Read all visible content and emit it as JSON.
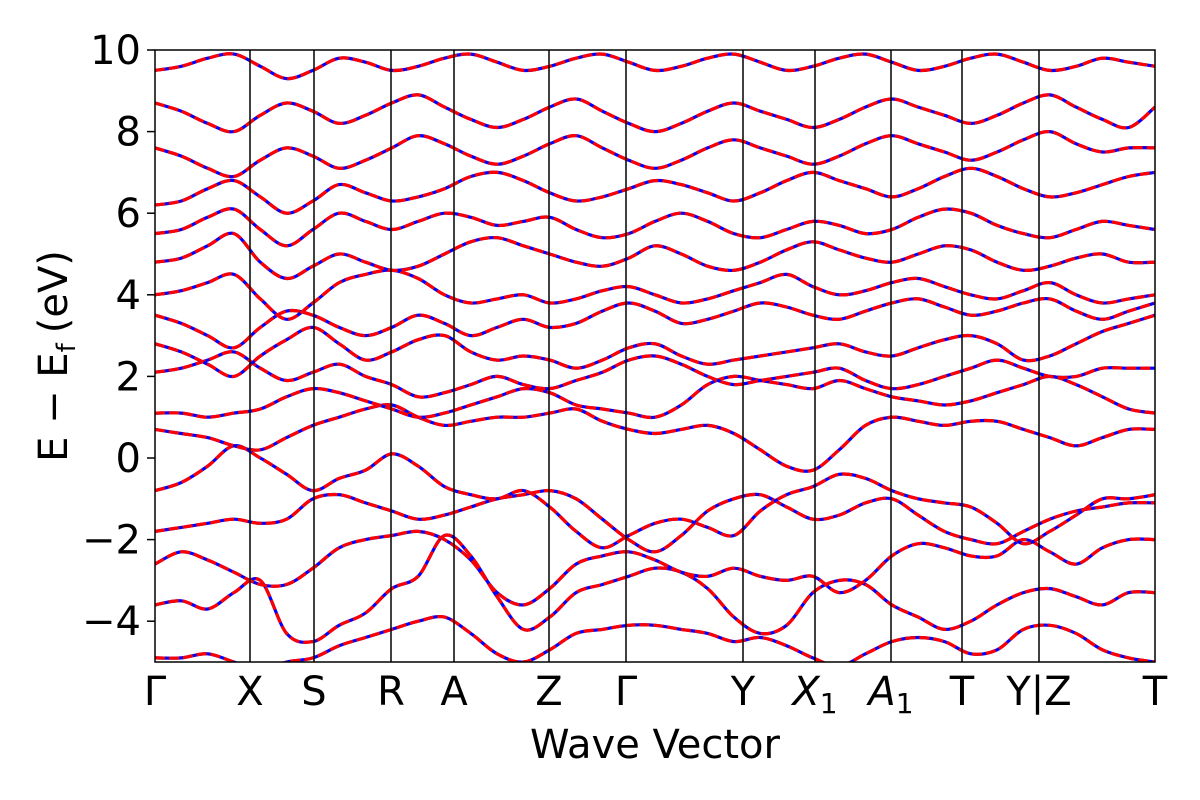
{
  "chart_data": {
    "type": "line",
    "title": "",
    "xlabel": "Wave Vector",
    "ylabel": "E − E_f (eV)",
    "ylabel_main": "E − E",
    "ylabel_sub": "f",
    "ylabel_unit": "(eV)",
    "ylim": [
      -5,
      10
    ],
    "yticks": [
      -4,
      -2,
      0,
      2,
      4,
      6,
      8,
      10
    ],
    "ytick_labels": [
      "−4",
      "−2",
      "0",
      "2",
      "4",
      "6",
      "8",
      "10"
    ],
    "grid": false,
    "legend": "none",
    "xlim": [
      0,
      1
    ],
    "high_symmetry_points": [
      {
        "label": "Γ",
        "x": 0.0
      },
      {
        "label": "X",
        "x": 0.095
      },
      {
        "label": "S",
        "x": 0.159
      },
      {
        "label": "R",
        "x": 0.236
      },
      {
        "label": "A",
        "x": 0.299
      },
      {
        "label": "Z",
        "x": 0.394
      },
      {
        "label": "Γ",
        "x": 0.471
      },
      {
        "label": "Y",
        "x": 0.588
      },
      {
        "label": "X",
        "sub": "1",
        "italic": true,
        "x": 0.66
      },
      {
        "label": "A",
        "sub": "1",
        "italic": true,
        "x": 0.736
      },
      {
        "label": "T",
        "x": 0.807
      },
      {
        "label": "Y|Z",
        "x": 0.884
      },
      {
        "label": "T",
        "x": 1.0
      }
    ],
    "series": [
      {
        "style": "solid",
        "color": "#0000ff"
      },
      {
        "style": "dashed",
        "color": "#ff0000"
      }
    ],
    "bands": [
      [
        -4.9,
        -4.9,
        -4.8,
        -5.0,
        -5.2,
        -5.0,
        -4.9,
        -4.6,
        -4.4,
        -4.2,
        -4.0,
        -3.9,
        -4.3,
        -4.8,
        -5.0,
        -4.7,
        -4.3,
        -4.2,
        -4.1,
        -4.1,
        -4.2,
        -4.3,
        -4.5,
        -4.4,
        -4.6,
        -4.9,
        -5.1,
        -4.8,
        -4.5,
        -4.4,
        -4.5,
        -4.8,
        -4.7,
        -4.2,
        -4.1,
        -4.3,
        -4.7,
        -4.9,
        -5.0
      ],
      [
        -3.6,
        -3.5,
        -3.7,
        -3.3,
        -3.0,
        -4.3,
        -4.5,
        -4.1,
        -3.8,
        -3.2,
        -2.9,
        -1.9,
        -2.4,
        -3.4,
        -4.2,
        -3.9,
        -3.3,
        -3.1,
        -2.9,
        -2.7,
        -2.8,
        -3.2,
        -3.9,
        -4.3,
        -4.1,
        -3.3,
        -3.0,
        -3.1,
        -3.6,
        -3.9,
        -4.2,
        -4.0,
        -3.6,
        -3.3,
        -3.2,
        -3.4,
        -3.6,
        -3.3,
        -3.3
      ],
      [
        -2.6,
        -2.3,
        -2.5,
        -2.8,
        -3.1,
        -3.1,
        -2.7,
        -2.2,
        -2.0,
        -1.9,
        -1.8,
        -2.0,
        -2.5,
        -3.3,
        -3.6,
        -3.2,
        -2.6,
        -2.4,
        -2.3,
        -2.5,
        -2.8,
        -2.9,
        -2.7,
        -2.9,
        -3.0,
        -2.9,
        -3.3,
        -3.0,
        -2.4,
        -2.1,
        -2.2,
        -2.4,
        -2.4,
        -2.0,
        -2.3,
        -2.6,
        -2.2,
        -2.0,
        -2.0
      ],
      [
        -1.8,
        -1.7,
        -1.6,
        -1.5,
        -1.6,
        -1.5,
        -1.0,
        -0.9,
        -1.1,
        -1.3,
        -1.5,
        -1.4,
        -1.2,
        -1.0,
        -0.9,
        -0.8,
        -1.0,
        -1.5,
        -2.0,
        -2.3,
        -1.9,
        -1.3,
        -1.0,
        -0.9,
        -1.2,
        -1.5,
        -1.4,
        -1.1,
        -1.0,
        -1.4,
        -1.8,
        -2.0,
        -2.1,
        -1.8,
        -1.5,
        -1.3,
        -1.2,
        -1.1,
        -1.1
      ],
      [
        -0.8,
        -0.6,
        -0.2,
        0.3,
        0.0,
        -0.4,
        -0.8,
        -0.5,
        -0.3,
        0.1,
        -0.2,
        -0.7,
        -0.9,
        -1.0,
        -0.8,
        -1.2,
        -1.8,
        -2.2,
        -1.9,
        -1.6,
        -1.5,
        -1.7,
        -1.9,
        -1.3,
        -0.9,
        -0.7,
        -0.4,
        -0.5,
        -0.8,
        -1.0,
        -1.1,
        -1.2,
        -1.6,
        -2.1,
        -1.8,
        -1.4,
        -1.0,
        -1.0,
        -0.9
      ],
      [
        0.7,
        0.6,
        0.5,
        0.3,
        0.2,
        0.5,
        0.8,
        1.0,
        1.2,
        1.3,
        1.0,
        0.8,
        0.9,
        1.0,
        1.0,
        1.1,
        1.2,
        0.9,
        0.7,
        0.6,
        0.7,
        0.8,
        0.6,
        0.2,
        -0.2,
        -0.3,
        0.2,
        0.8,
        1.0,
        0.9,
        0.8,
        0.9,
        0.9,
        0.7,
        0.5,
        0.3,
        0.5,
        0.7,
        0.7
      ],
      [
        1.1,
        1.1,
        1.0,
        1.1,
        1.2,
        1.5,
        1.7,
        1.6,
        1.4,
        1.2,
        1.0,
        1.1,
        1.3,
        1.5,
        1.7,
        1.6,
        1.3,
        1.2,
        1.1,
        1.0,
        1.3,
        1.8,
        2.0,
        1.9,
        1.8,
        1.7,
        1.9,
        1.7,
        1.5,
        1.4,
        1.3,
        1.4,
        1.6,
        1.8,
        2.0,
        1.8,
        1.5,
        1.2,
        1.1
      ],
      [
        2.1,
        2.2,
        2.4,
        2.6,
        2.2,
        1.9,
        2.1,
        2.3,
        2.0,
        1.8,
        1.5,
        1.6,
        1.8,
        2.0,
        1.8,
        1.7,
        1.9,
        2.1,
        2.4,
        2.5,
        2.3,
        2.0,
        1.8,
        1.9,
        2.0,
        2.1,
        2.2,
        1.9,
        1.7,
        1.8,
        2.0,
        2.2,
        2.4,
        2.2,
        2.0,
        2.0,
        2.2,
        2.2,
        2.2
      ],
      [
        2.8,
        2.6,
        2.3,
        2.0,
        2.5,
        2.9,
        3.2,
        2.8,
        2.4,
        2.6,
        2.9,
        3.0,
        2.6,
        2.4,
        2.5,
        2.4,
        2.2,
        2.4,
        2.7,
        2.8,
        2.5,
        2.3,
        2.4,
        2.5,
        2.6,
        2.7,
        2.8,
        2.6,
        2.5,
        2.7,
        2.9,
        3.0,
        2.8,
        2.4,
        2.5,
        2.8,
        3.1,
        3.3,
        3.5
      ],
      [
        3.5,
        3.3,
        3.0,
        2.7,
        3.2,
        3.6,
        3.5,
        3.2,
        3.0,
        3.2,
        3.5,
        3.3,
        3.0,
        3.2,
        3.4,
        3.2,
        3.3,
        3.6,
        3.8,
        3.6,
        3.3,
        3.4,
        3.6,
        3.8,
        3.7,
        3.5,
        3.4,
        3.6,
        3.8,
        3.9,
        3.7,
        3.5,
        3.6,
        3.8,
        3.9,
        3.6,
        3.4,
        3.6,
        3.8
      ],
      [
        4.0,
        4.1,
        4.3,
        4.5,
        3.9,
        3.4,
        3.8,
        4.3,
        4.5,
        4.6,
        4.4,
        4.0,
        3.8,
        3.9,
        4.0,
        3.8,
        3.9,
        4.1,
        4.2,
        4.0,
        3.8,
        3.9,
        4.1,
        4.3,
        4.5,
        4.2,
        4.0,
        4.1,
        4.3,
        4.4,
        4.2,
        4.0,
        3.9,
        4.1,
        4.3,
        4.0,
        3.8,
        3.9,
        4.0
      ],
      [
        4.8,
        4.9,
        5.2,
        5.5,
        4.8,
        4.4,
        4.7,
        5.0,
        4.8,
        4.6,
        4.7,
        5.0,
        5.3,
        5.4,
        5.2,
        5.0,
        4.8,
        4.7,
        4.9,
        5.2,
        5.0,
        4.7,
        4.6,
        4.8,
        5.1,
        5.3,
        5.1,
        4.9,
        4.8,
        5.0,
        5.2,
        5.1,
        4.8,
        4.6,
        4.7,
        4.9,
        5.0,
        4.8,
        4.8
      ],
      [
        5.5,
        5.6,
        5.9,
        6.1,
        5.6,
        5.2,
        5.6,
        6.0,
        5.8,
        5.6,
        5.8,
        6.0,
        5.9,
        5.7,
        5.8,
        5.9,
        5.6,
        5.4,
        5.5,
        5.8,
        6.0,
        5.8,
        5.5,
        5.4,
        5.6,
        5.8,
        5.7,
        5.5,
        5.6,
        5.9,
        6.1,
        6.0,
        5.7,
        5.5,
        5.4,
        5.6,
        5.8,
        5.7,
        5.6
      ],
      [
        6.2,
        6.3,
        6.6,
        6.8,
        6.4,
        6.0,
        6.3,
        6.7,
        6.5,
        6.3,
        6.4,
        6.6,
        6.9,
        7.0,
        6.8,
        6.5,
        6.3,
        6.4,
        6.6,
        6.8,
        6.7,
        6.5,
        6.3,
        6.5,
        6.8,
        7.0,
        6.8,
        6.6,
        6.4,
        6.6,
        6.9,
        7.1,
        6.9,
        6.6,
        6.4,
        6.5,
        6.7,
        6.9,
        7.0
      ],
      [
        7.6,
        7.4,
        7.1,
        6.9,
        7.3,
        7.6,
        7.4,
        7.1,
        7.3,
        7.6,
        7.9,
        7.7,
        7.4,
        7.2,
        7.4,
        7.7,
        7.9,
        7.6,
        7.3,
        7.1,
        7.3,
        7.6,
        7.8,
        7.6,
        7.4,
        7.2,
        7.4,
        7.7,
        7.9,
        7.7,
        7.5,
        7.3,
        7.5,
        7.8,
        8.0,
        7.7,
        7.5,
        7.6,
        7.6
      ],
      [
        8.7,
        8.5,
        8.2,
        8.0,
        8.4,
        8.7,
        8.5,
        8.2,
        8.4,
        8.7,
        8.9,
        8.6,
        8.3,
        8.1,
        8.3,
        8.6,
        8.8,
        8.5,
        8.2,
        8.0,
        8.2,
        8.5,
        8.7,
        8.5,
        8.3,
        8.1,
        8.3,
        8.6,
        8.8,
        8.6,
        8.4,
        8.2,
        8.4,
        8.7,
        8.9,
        8.6,
        8.3,
        8.1,
        8.6
      ],
      [
        9.5,
        9.6,
        9.8,
        9.9,
        9.6,
        9.3,
        9.5,
        9.8,
        9.7,
        9.5,
        9.6,
        9.8,
        9.9,
        9.7,
        9.5,
        9.6,
        9.8,
        9.9,
        9.7,
        9.5,
        9.6,
        9.8,
        9.9,
        9.7,
        9.5,
        9.6,
        9.8,
        9.9,
        9.7,
        9.5,
        9.6,
        9.8,
        9.9,
        9.7,
        9.5,
        9.6,
        9.8,
        9.7,
        9.6
      ]
    ]
  }
}
